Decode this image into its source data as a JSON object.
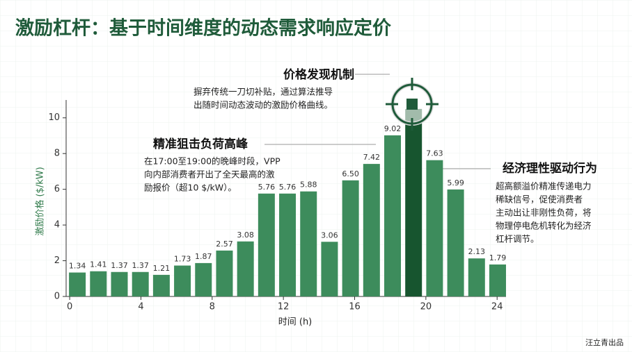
{
  "chart_data": {
    "type": "bar",
    "title": "激励杠杆：基于时间维度的动态需求响应定价",
    "xlabel": "时间 (h)",
    "ylabel": "激励价格 ($/kW)",
    "x": [
      0.43,
      1.61,
      2.79,
      3.97,
      5.15,
      6.33,
      7.51,
      8.69,
      9.87,
      11.05,
      12.23,
      13.41,
      14.59,
      15.77,
      16.95,
      18.13,
      19.31,
      20.49,
      21.67,
      22.85,
      24.03
    ],
    "values": [
      1.34,
      1.41,
      1.37,
      1.37,
      1.21,
      1.73,
      1.87,
      2.57,
      3.08,
      5.76,
      5.76,
      5.88,
      3.06,
      6.5,
      7.42,
      9.02,
      10.5,
      7.63,
      5.99,
      2.13,
      1.79
    ],
    "value_labels": [
      "1.34",
      "1.41",
      "1.37",
      "1.37",
      "1.21",
      "1.73",
      "1.87",
      "2.57",
      "3.08",
      "5.76",
      "5.76",
      "5.88",
      "3.06",
      "6.50",
      "7.42",
      "9.02",
      null,
      "7.63",
      "5.99",
      "2.13",
      "1.79"
    ],
    "colors": [
      "#3d8c5c",
      "#3d8c5c",
      "#3d8c5c",
      "#3d8c5c",
      "#3d8c5c",
      "#3d8c5c",
      "#3d8c5c",
      "#3d8c5c",
      "#3d8c5c",
      "#3d8c5c",
      "#3d8c5c",
      "#3d8c5c",
      "#3d8c5c",
      "#3d8c5c",
      "#3d8c5c",
      "#3d8c5c",
      "#17552f",
      "#3d8c5c",
      "#3d8c5c",
      "#3d8c5c",
      "#3d8c5c"
    ],
    "xlim": [
      -0.2,
      24.5
    ],
    "ylim": [
      0,
      11
    ],
    "xticks": [
      0,
      4,
      8,
      12,
      16,
      20,
      24
    ],
    "yticks": [
      0,
      2,
      4,
      6,
      8,
      10
    ],
    "annotations": [
      {
        "title": "价格发现机制",
        "lines": [
          "摒弃传统一刀切补贴，通过算法推导",
          "出随时间动态波动的激励价格曲线。"
        ]
      },
      {
        "title": "精准狙击负荷高峰",
        "lines": [
          "在17:00至19:00的晚峰时段，VPP",
          "向内部消费者开出了全天最高的激",
          "励报价（超10 $/kW）。"
        ]
      },
      {
        "title": "经济理性驱动行为",
        "lines": [
          "超高额溢价精准传递电力",
          "稀缺信号，促使消费者",
          "主动出让非刚性负荷，将",
          "物理停电危机转化为经济",
          "杠杆调节。"
        ]
      }
    ],
    "footer": "汪立青出品"
  }
}
